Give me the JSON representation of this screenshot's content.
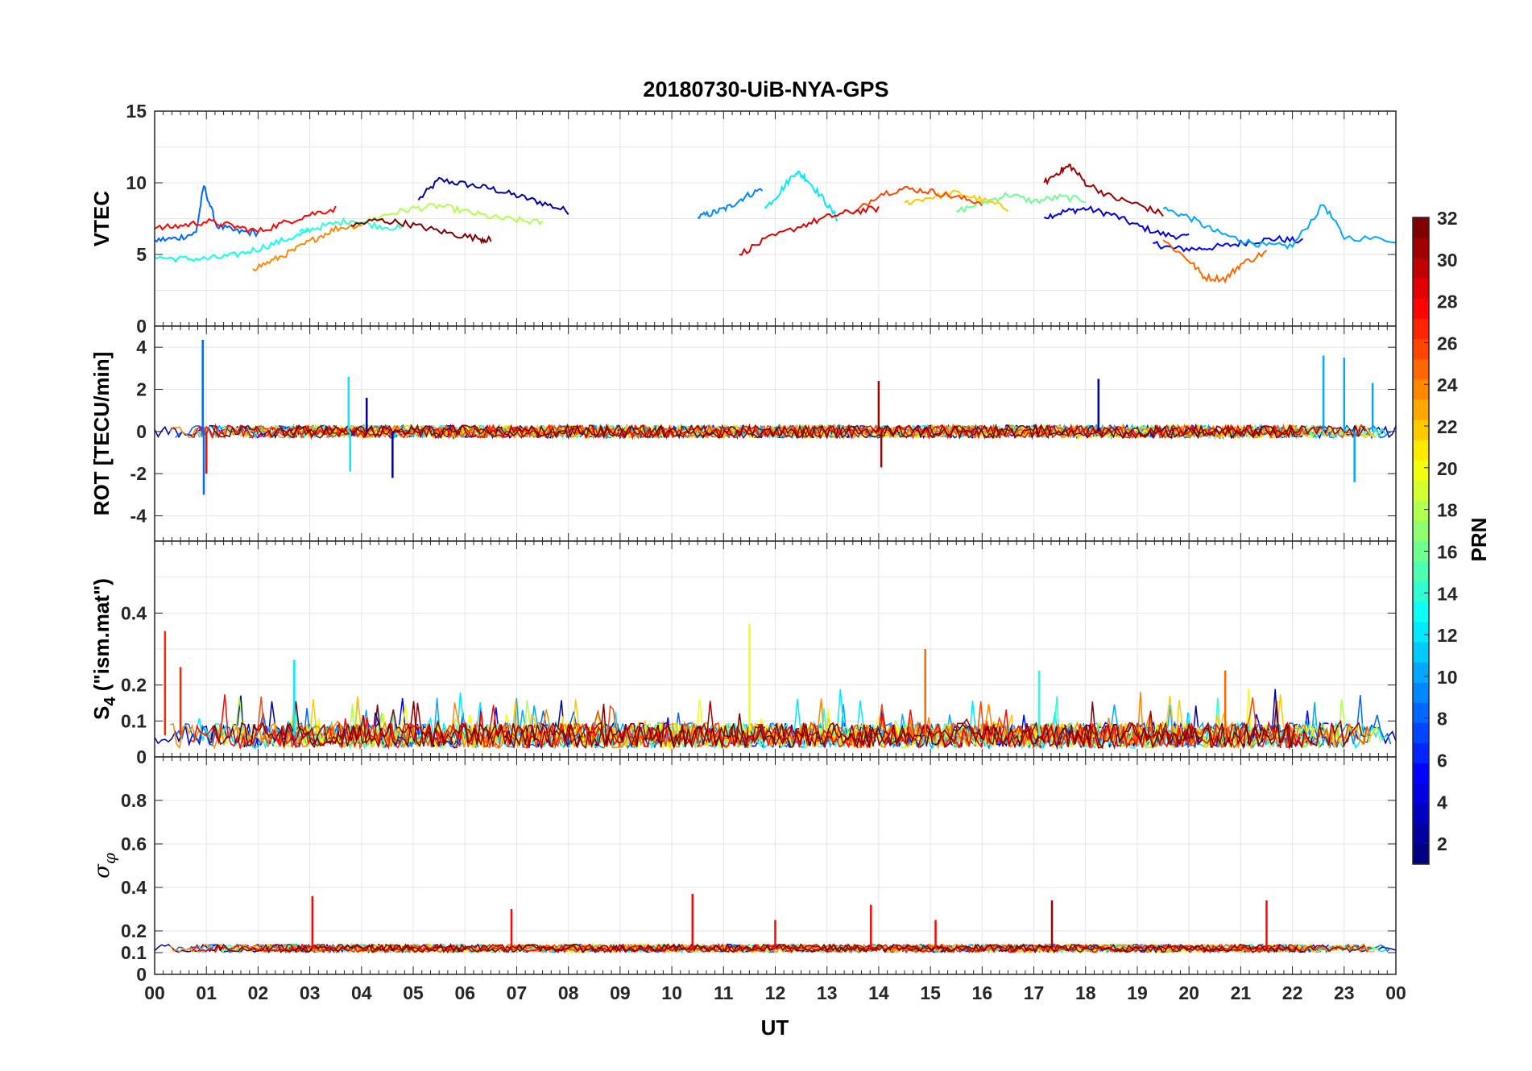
{
  "chart_data": {
    "title": "20180730-UiB-NYA-GPS",
    "type": "line",
    "x_axis": {
      "label": "UT",
      "tick_labels": [
        "00",
        "01",
        "02",
        "03",
        "04",
        "05",
        "06",
        "07",
        "08",
        "09",
        "10",
        "11",
        "12",
        "13",
        "14",
        "15",
        "16",
        "17",
        "18",
        "19",
        "20",
        "21",
        "22",
        "23",
        "00"
      ],
      "range_hours": [
        0,
        24
      ]
    },
    "colorbar": {
      "label": "PRN",
      "colormap": "jet",
      "range": [
        1,
        32
      ],
      "tick_labels": [
        "2",
        "4",
        "6",
        "8",
        "10",
        "12",
        "14",
        "16",
        "18",
        "20",
        "22",
        "24",
        "26",
        "28",
        "30",
        "32"
      ]
    },
    "grid": true,
    "panels": [
      {
        "name": "vtec",
        "ylabel": "VTEC",
        "ylim": [
          0,
          15
        ],
        "ytick_labels": [
          "0",
          "5",
          "10",
          "15"
        ],
        "series": [
          {
            "prn": 2,
            "x": [
              5.1,
              5.5,
              6,
              6.5,
              7,
              7.5,
              8
            ],
            "y": [
              8.8,
              10.2,
              9.9,
              9.6,
              9.1,
              8.6,
              8.0
            ]
          },
          {
            "prn": 4,
            "x": [
              17.2,
              17.6,
              18,
              18.5,
              19,
              19.5,
              20
            ],
            "y": [
              7.6,
              8.0,
              8.2,
              7.8,
              7.0,
              6.4,
              6.2
            ]
          },
          {
            "prn": 5,
            "x": [
              19.3,
              19.7,
              20.2,
              20.7,
              21.2,
              21.7,
              22.2
            ],
            "y": [
              5.8,
              5.4,
              5.4,
              5.6,
              5.9,
              6.1,
              5.9
            ]
          },
          {
            "prn": 8,
            "x": [
              0,
              0.4,
              0.8,
              0.95,
              1.2,
              1.6,
              2
            ],
            "y": [
              6.0,
              6.1,
              6.5,
              9.8,
              7.0,
              6.6,
              6.5
            ]
          },
          {
            "prn": 9,
            "x": [
              10.5,
              10.8,
              11.1,
              11.4,
              11.75
            ],
            "y": [
              7.6,
              7.9,
              8.3,
              9.0,
              9.6
            ]
          },
          {
            "prn": 10,
            "x": [
              19.5,
              20,
              20.5,
              21,
              21.5,
              22,
              22.6,
              23,
              24
            ],
            "y": [
              8.2,
              7.6,
              6.6,
              6.0,
              5.6,
              5.6,
              8.5,
              6.2,
              6.0
            ]
          },
          {
            "prn": 12,
            "x": [
              11.8,
              12.1,
              12.4,
              12.6,
              12.9,
              13.2
            ],
            "y": [
              8.2,
              9.4,
              10.8,
              10.3,
              9.0,
              7.5
            ]
          },
          {
            "prn": 13,
            "x": [
              0,
              0.5,
              1,
              1.5,
              2,
              2.5,
              3
            ],
            "y": [
              4.8,
              4.7,
              4.7,
              4.9,
              5.4,
              6.0,
              6.6
            ]
          },
          {
            "prn": 14,
            "x": [
              2.8,
              3.3,
              3.8,
              4.3,
              4.8
            ],
            "y": [
              6.6,
              7.0,
              7.4,
              7.0,
              6.8
            ]
          },
          {
            "prn": 16,
            "x": [
              15.5,
              16,
              16.5,
              17,
              17.5,
              18
            ],
            "y": [
              8.0,
              8.6,
              9.2,
              8.7,
              9.0,
              8.8
            ]
          },
          {
            "prn": 18,
            "x": [
              4,
              4.5,
              5,
              5.5,
              6,
              6.5,
              7,
              7.5
            ],
            "y": [
              7.2,
              7.8,
              8.2,
              8.4,
              8.0,
              7.6,
              7.4,
              7.2
            ]
          },
          {
            "prn": 22,
            "x": [
              14.5,
              15,
              15.5,
              16,
              16.5
            ],
            "y": [
              8.6,
              9.0,
              9.3,
              8.8,
              8.2
            ]
          },
          {
            "prn": 24,
            "x": [
              1.9,
              2.3,
              2.7,
              3.1,
              3.5,
              4
            ],
            "y": [
              4.0,
              4.6,
              5.3,
              6.1,
              6.8,
              7.1
            ]
          },
          {
            "prn": 25,
            "x": [
              19.5,
              20,
              20.3,
              20.7,
              21,
              21.5
            ],
            "y": [
              6.0,
              4.6,
              3.4,
              3.3,
              4.3,
              5.2
            ]
          },
          {
            "prn": 26,
            "x": [
              13.5,
              14,
              14.5,
              15,
              15.5,
              16
            ],
            "y": [
              7.8,
              9.2,
              9.6,
              9.4,
              9.0,
              8.6
            ]
          },
          {
            "prn": 28,
            "x": [
              0,
              0.5,
              1,
              1.5,
              2,
              2.5,
              3,
              3.5
            ],
            "y": [
              6.8,
              7.0,
              7.3,
              7.0,
              6.6,
              7.2,
              7.8,
              8.2
            ]
          },
          {
            "prn": 29,
            "x": [
              11.3,
              11.8,
              12.5,
              13,
              13.5,
              14
            ],
            "y": [
              5.0,
              6.0,
              7.0,
              7.6,
              8.0,
              8.2
            ]
          },
          {
            "prn": 31,
            "x": [
              17.2,
              17.5,
              17.7,
              18,
              18.5,
              19,
              19.5
            ],
            "y": [
              10.0,
              10.8,
              11.2,
              10.0,
              9.0,
              8.5,
              7.8
            ]
          },
          {
            "prn": 32,
            "x": [
              3.8,
              4.3,
              4.8,
              5.3,
              5.8,
              6.3,
              6.5
            ],
            "y": [
              7.0,
              7.4,
              7.2,
              6.8,
              6.4,
              6.1,
              6.0
            ]
          }
        ]
      },
      {
        "name": "rot",
        "ylabel": "ROT [TECU/min]",
        "ylim": [
          -5.2,
          5
        ],
        "ytick_labels": [
          "-4",
          "-2",
          "0",
          "2",
          "4"
        ],
        "spikes": [
          {
            "prn": 8,
            "x": 0.93,
            "y": 4.35
          },
          {
            "prn": 8,
            "x": 0.95,
            "y": -3.0
          },
          {
            "prn": 28,
            "x": 1.0,
            "y": -2.0
          },
          {
            "prn": 12,
            "x": 3.75,
            "y": 2.6
          },
          {
            "prn": 12,
            "x": 3.78,
            "y": -1.9
          },
          {
            "prn": 2,
            "x": 4.6,
            "y": -2.2
          },
          {
            "prn": 2,
            "x": 4.1,
            "y": 1.6
          },
          {
            "prn": 31,
            "x": 14.0,
            "y": 2.4
          },
          {
            "prn": 31,
            "x": 14.05,
            "y": -1.7
          },
          {
            "prn": 2,
            "x": 18.25,
            "y": 2.5
          },
          {
            "prn": 10,
            "x": 22.6,
            "y": 3.6
          },
          {
            "prn": 10,
            "x": 23.0,
            "y": 3.5
          },
          {
            "prn": 10,
            "x": 23.2,
            "y": -2.4
          },
          {
            "prn": 10,
            "x": 23.55,
            "y": 2.3
          }
        ]
      },
      {
        "name": "s4",
        "ylabel": "S",
        "ylabel_subscript": "4",
        "ylabel_suffix": "(\"ism.mat\")",
        "ylim": [
          0,
          0.6
        ],
        "ytick_labels": [
          "0",
          "0.1",
          "0.2",
          "0.4"
        ],
        "spikes": [
          {
            "prn": 27,
            "x": 0.2,
            "y": 0.35
          },
          {
            "prn": 27,
            "x": 0.5,
            "y": 0.25
          },
          {
            "prn": 12,
            "x": 2.7,
            "y": 0.27
          },
          {
            "prn": 20,
            "x": 11.5,
            "y": 0.37
          },
          {
            "prn": 25,
            "x": 14.9,
            "y": 0.3
          },
          {
            "prn": 25,
            "x": 20.7,
            "y": 0.24
          },
          {
            "prn": 14,
            "x": 17.1,
            "y": 0.24
          }
        ]
      },
      {
        "name": "sigma_phi",
        "ylabel": "σ",
        "ylabel_subscript": "φ",
        "ylim": [
          0,
          1
        ],
        "ytick_labels": [
          "0",
          "0.1",
          "0.2",
          "0.4",
          "0.6",
          "0.8"
        ],
        "spikes": [
          {
            "prn": 28,
            "x": 3.05,
            "y": 0.36
          },
          {
            "prn": 28,
            "x": 6.9,
            "y": 0.3
          },
          {
            "prn": 28,
            "x": 10.4,
            "y": 0.37
          },
          {
            "prn": 28,
            "x": 12.0,
            "y": 0.25
          },
          {
            "prn": 28,
            "x": 13.85,
            "y": 0.32
          },
          {
            "prn": 28,
            "x": 15.1,
            "y": 0.25
          },
          {
            "prn": 31,
            "x": 17.35,
            "y": 0.34
          },
          {
            "prn": 28,
            "x": 21.5,
            "y": 0.34
          }
        ]
      }
    ]
  }
}
